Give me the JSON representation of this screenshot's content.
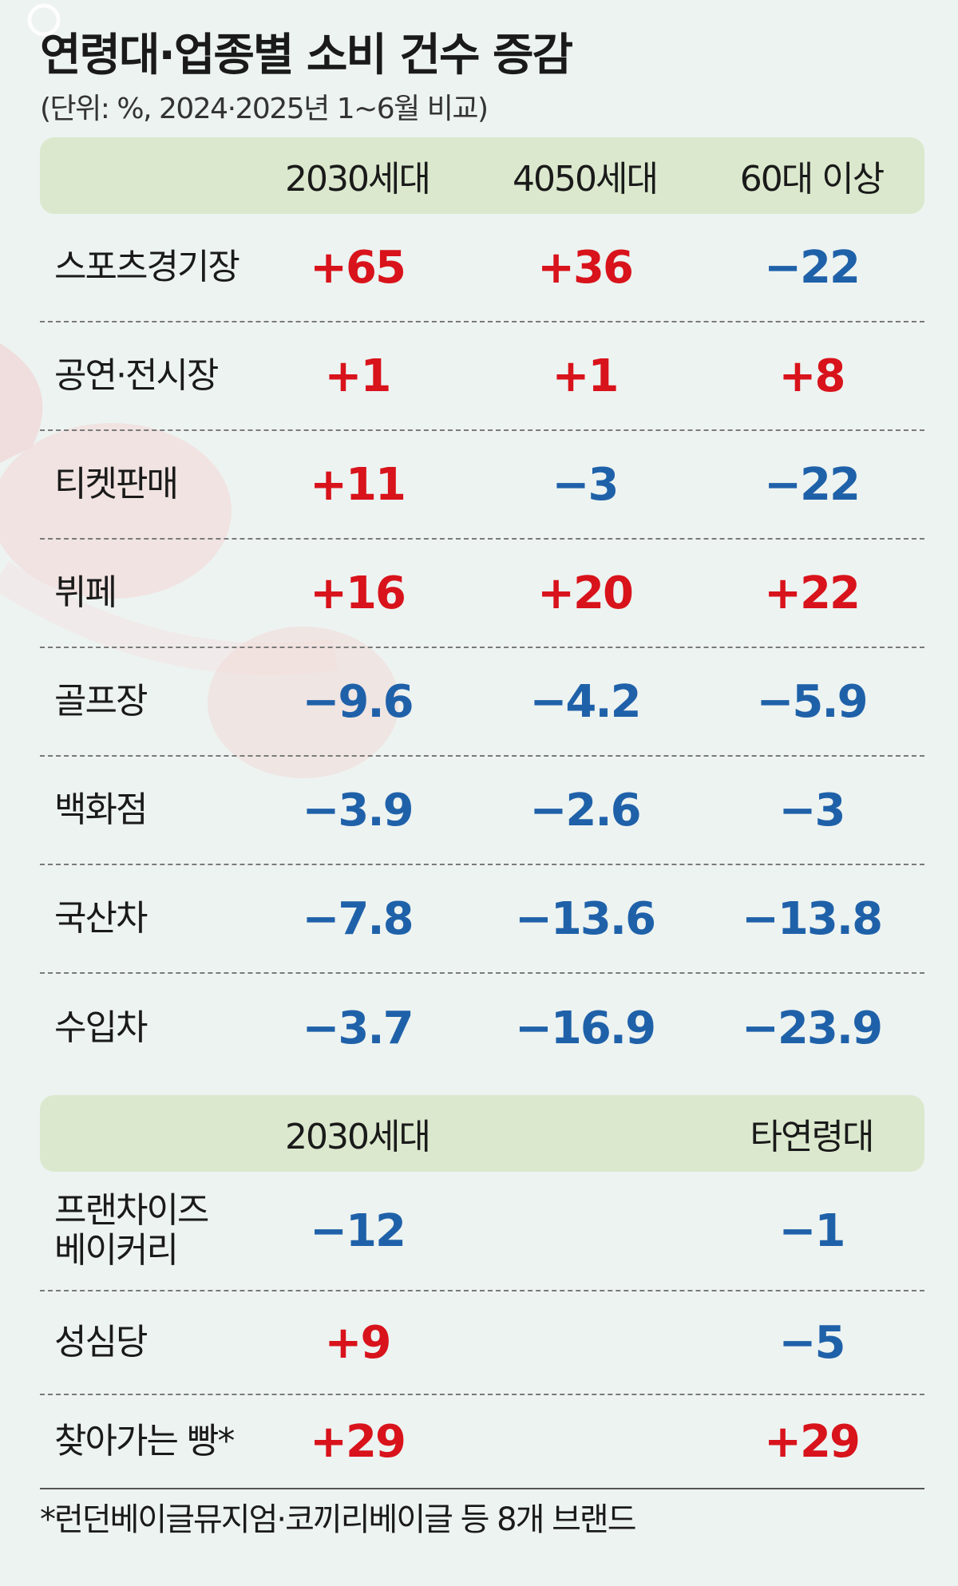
{
  "title": "연령대·업종별 소비 건수 증감",
  "subtitle": "(단위: %, 2024·2025년 1~6월 비교)",
  "colors": {
    "positive": "#d8131b",
    "negative": "#1f61a9",
    "header_bg": "#dbe8cd",
    "page_bg": "#edf3f1"
  },
  "chart_data": [
    {
      "type": "table",
      "columns": [
        "2030세대",
        "4050세대",
        "60대 이상"
      ],
      "rows": [
        {
          "label": "스포츠경기장",
          "values": [
            "+65",
            "+36",
            "−22"
          ]
        },
        {
          "label": "공연·전시장",
          "values": [
            "+1",
            "+1",
            "+8"
          ]
        },
        {
          "label": "티켓판매",
          "values": [
            "+11",
            "−3",
            "−22"
          ]
        },
        {
          "label": "뷔페",
          "values": [
            "+16",
            "+20",
            "+22"
          ]
        },
        {
          "label": "골프장",
          "values": [
            "−9.6",
            "−4.2",
            "−5.9"
          ]
        },
        {
          "label": "백화점",
          "values": [
            "−3.9",
            "−2.6",
            "−3"
          ]
        },
        {
          "label": "국산차",
          "values": [
            "−7.8",
            "−13.6",
            "−13.8"
          ]
        },
        {
          "label": "수입차",
          "values": [
            "−3.7",
            "−16.9",
            "−23.9"
          ]
        }
      ]
    },
    {
      "type": "table",
      "columns": [
        "2030세대",
        "타연령대"
      ],
      "rows": [
        {
          "label_lines": [
            "프랜차이즈",
            "베이커리"
          ],
          "values": [
            "−12",
            "−1"
          ]
        },
        {
          "label": "성심당",
          "values": [
            "+9",
            "−5"
          ]
        },
        {
          "label": "찾아가는 빵*",
          "values": [
            "+29",
            "+29"
          ]
        }
      ]
    }
  ],
  "footnote": "*런던베이글뮤지엄·코끼리베이글 등 8개 브랜드"
}
